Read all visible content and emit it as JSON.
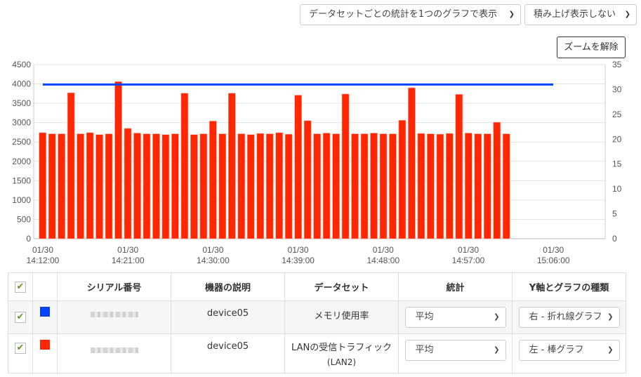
{
  "controls": {
    "display_mode": "データセットごとの統計を1つのグラフで表示",
    "stack_mode": "積み上げ表示しない",
    "reset_zoom": "ズームを解除"
  },
  "chart_data": {
    "type": "bar",
    "title": "",
    "left_axis": {
      "ticks": [
        0,
        500,
        1000,
        1500,
        2000,
        2500,
        3000,
        3500,
        4000,
        4500
      ],
      "ylim": [
        0,
        4500
      ]
    },
    "right_axis": {
      "ticks": [
        0,
        5,
        10,
        15,
        20,
        25,
        30,
        35
      ],
      "ylim": [
        0,
        35
      ]
    },
    "x_ticks": [
      {
        "date": "01/30",
        "time": "14:12:00"
      },
      {
        "date": "01/30",
        "time": "14:21:00"
      },
      {
        "date": "01/30",
        "time": "14:30:00"
      },
      {
        "date": "01/30",
        "time": "14:39:00"
      },
      {
        "date": "01/30",
        "time": "14:48:00"
      },
      {
        "date": "01/30",
        "time": "14:57:00"
      },
      {
        "date": "01/30",
        "time": "15:06:00"
      }
    ],
    "grid": true,
    "series": [
      {
        "name": "LANの受信トラフィック (LAN2)",
        "type": "bar",
        "axis": "left",
        "color": "#ff2600",
        "values": [
          2740,
          2710,
          2710,
          3770,
          2710,
          2740,
          2690,
          2710,
          4060,
          2850,
          2730,
          2710,
          2710,
          2690,
          2710,
          3760,
          2690,
          2710,
          3040,
          2710,
          3760,
          2710,
          2690,
          2720,
          2710,
          2740,
          2700,
          3710,
          3050,
          2710,
          2730,
          2710,
          3740,
          2710,
          2710,
          2730,
          2710,
          2710,
          3060,
          3900,
          2720,
          2710,
          2700,
          2720,
          3730,
          2730,
          2710,
          2710,
          3010,
          2710
        ]
      },
      {
        "name": "メモリ使用率",
        "type": "line",
        "axis": "right",
        "color": "#0044ff",
        "values": [
          31,
          31
        ]
      }
    ]
  },
  "table": {
    "headers": [
      "",
      "",
      "シリアル番号",
      "機器の説明",
      "データセット",
      "統計",
      "Y軸とグラフの種類"
    ],
    "rows": [
      {
        "color": "#0044ff",
        "serial": "",
        "device": "device05",
        "dataset": "メモリ使用率",
        "dataset_sub": "",
        "stat": "平均",
        "axis_type": "右 - 折れ線グラフ"
      },
      {
        "color": "#ff2600",
        "serial": "",
        "device": "device05",
        "dataset": "LANの受信トラフィック",
        "dataset_sub": "(LAN2)",
        "stat": "平均",
        "axis_type": "左 - 棒グラフ"
      }
    ]
  }
}
